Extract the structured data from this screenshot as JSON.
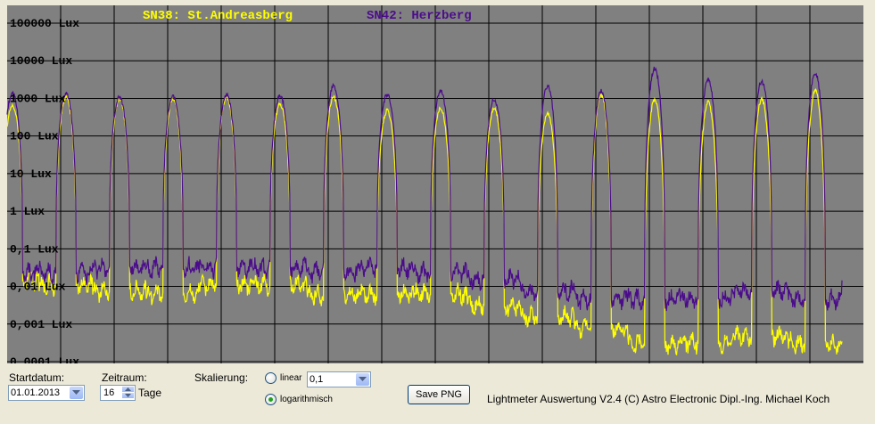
{
  "chart_data": {
    "type": "line",
    "scale": "log",
    "grid": true,
    "y_ticks": [
      "100000 Lux",
      "10000 Lux",
      "1000 Lux",
      "100 Lux",
      "10 Lux",
      "1 Lux",
      "0,1 Lux",
      "0,01 Lux",
      "0,001 Lux",
      "0,0001 Lux"
    ],
    "ylim": [
      0.0001,
      100000
    ],
    "days": 16,
    "series": [
      {
        "name": "SN38: St.Andreasberg",
        "color": "#ffff00",
        "day_peaks": [
          400,
          700,
          650,
          650,
          700,
          450,
          700,
          300,
          350,
          350,
          250,
          800,
          600,
          500,
          600,
          1000,
          500
        ],
        "night_levels": [
          0.01,
          0.007,
          0.005,
          0.004,
          0.007,
          0.007,
          0.004,
          0.004,
          0.004,
          0.002,
          0.001,
          0.0005,
          0.0002,
          0.0002,
          0.0003,
          0.0002,
          0.0002
        ]
      },
      {
        "name": "SN42: Herzberg",
        "color": "#4b0c8c",
        "day_peaks": [
          900,
          900,
          700,
          700,
          800,
          750,
          1400,
          800,
          1000,
          600,
          1400,
          1000,
          4000,
          2000,
          1800,
          3000,
          1500
        ],
        "night_levels": [
          0.015,
          0.015,
          0.02,
          0.02,
          0.02,
          0.02,
          0.015,
          0.02,
          0.015,
          0.01,
          0.005,
          0.003,
          0.003,
          0.003,
          0.005,
          0.003,
          0.01
        ]
      }
    ]
  },
  "controls": {
    "startdatum_label": "Startdatum:",
    "startdatum_value": "01.01.2013",
    "zeitraum_label": "Zeitraum:",
    "zeitraum_value": "16",
    "zeitraum_unit": "Tage",
    "skalierung_label": "Skalierung:",
    "linear_label": "linear",
    "linear_value": "0,1",
    "log_label": "logarithmisch",
    "log_selected": true,
    "save_label": "Save PNG",
    "footer": "Lightmeter Auswertung V2.4  (C) Astro Electronic Dipl.-Ing. Michael Koch"
  },
  "colors": {
    "plot_bg": "#808080",
    "grid": "#000000",
    "window_bg": "#ece9d8"
  }
}
